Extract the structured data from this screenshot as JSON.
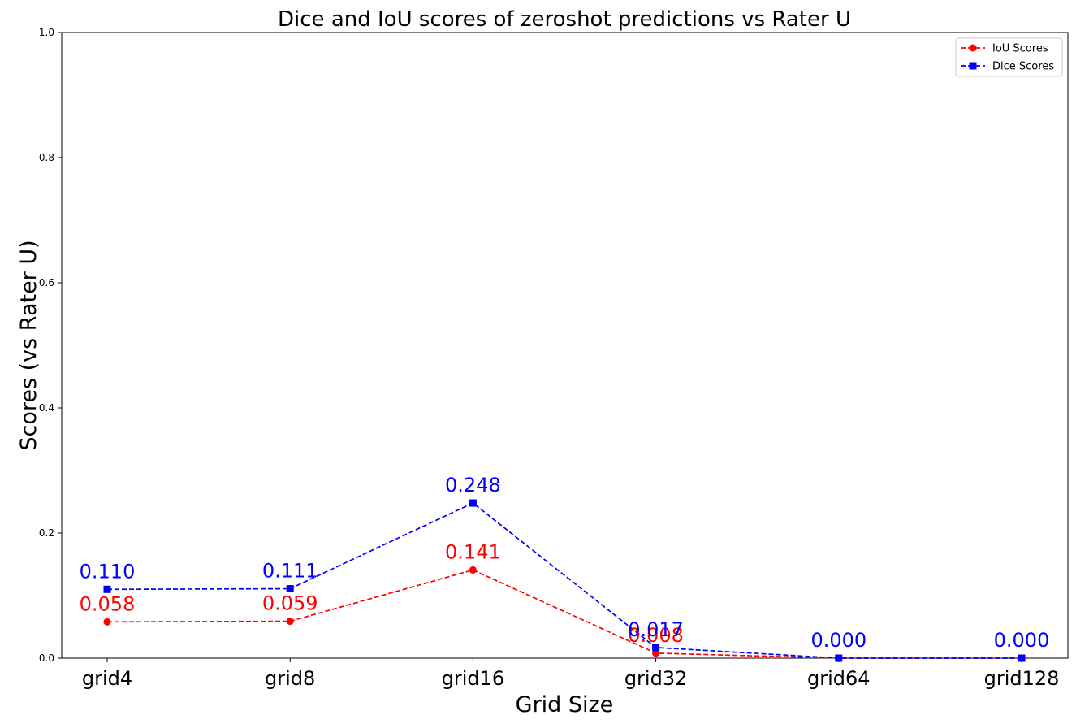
{
  "chart_data": {
    "type": "line",
    "title": "Dice and IoU scores of zeroshot predictions vs Rater U",
    "xlabel": "Grid Size",
    "ylabel": "Scores (vs Rater U)",
    "categories": [
      "grid4",
      "grid8",
      "grid16",
      "grid32",
      "grid64",
      "grid128"
    ],
    "ylim": [
      0,
      1.0
    ],
    "yticks": [
      "0.0",
      "0.2",
      "0.4",
      "0.6",
      "0.8",
      "1.0"
    ],
    "yticks_values": [
      0,
      0.2,
      0.4,
      0.6,
      0.8,
      1.0
    ],
    "grid": false,
    "legend_position": "top-right",
    "series": [
      {
        "name": "IoU Scores",
        "color": "#ff0000",
        "marker": "circle",
        "line_style": "dashed",
        "values": [
          0.058,
          0.059,
          0.141,
          0.008,
          0.0,
          0.0
        ],
        "labels": [
          "0.058",
          "0.059",
          "0.141",
          "0.008",
          "",
          ""
        ]
      },
      {
        "name": "Dice Scores",
        "color": "#0000ff",
        "marker": "square",
        "line_style": "dashed",
        "values": [
          0.11,
          0.111,
          0.248,
          0.017,
          0.0,
          0.0
        ],
        "labels": [
          "0.110",
          "0.111",
          "0.248",
          "0.017",
          "0.000",
          "0.000"
        ]
      }
    ]
  }
}
